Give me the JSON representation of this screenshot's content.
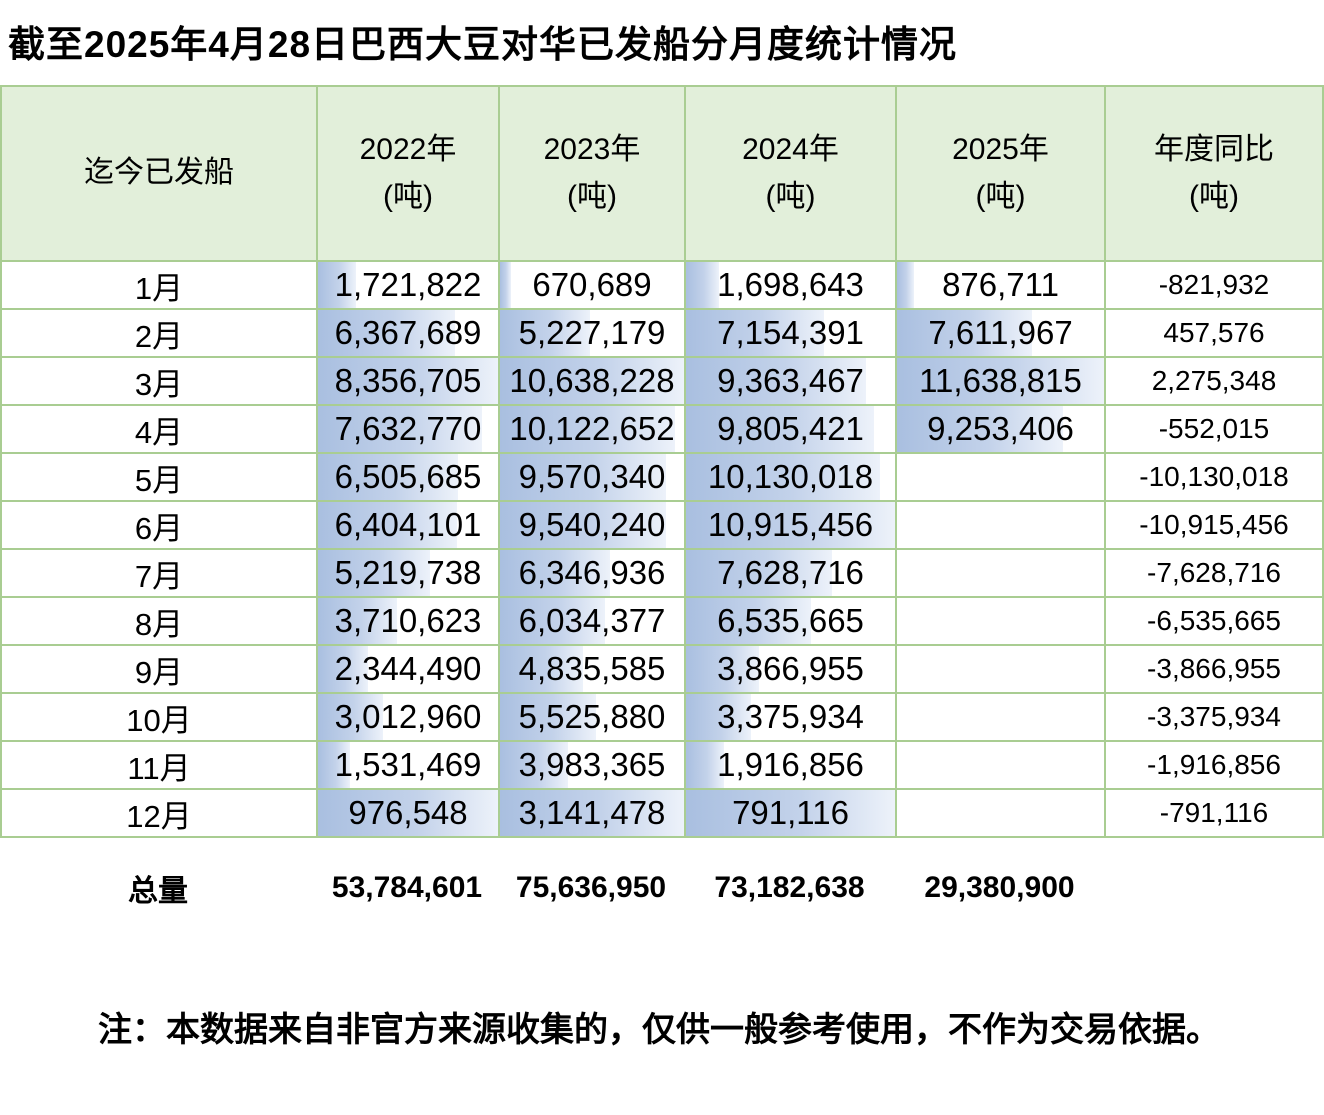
{
  "title": "截至2025年4月28日巴西大豆对华已发船分月度统计情况",
  "note": "注：本数据来自非官方来源收集的，仅供一般参考使用，不作为交易依据。",
  "colors": {
    "header_bg": "#e2efda",
    "grid_line": "#a9cd92",
    "bar_gradient_start": "#a9bfe0",
    "bar_gradient_end": "#edf2fa"
  },
  "table": {
    "header": [
      {
        "line1": "迄今已发船",
        "line2": ""
      },
      {
        "line1": "2022年",
        "line2": "(吨)"
      },
      {
        "line1": "2023年",
        "line2": "(吨)"
      },
      {
        "line1": "2024年",
        "line2": "(吨)"
      },
      {
        "line1": "2025年",
        "line2": "(吨)"
      },
      {
        "line1": "年度同比",
        "line2": "(吨)"
      }
    ],
    "rows": [
      {
        "month": "1月",
        "values": [
          "1,721,822",
          "670,689",
          "1,698,643",
          "876,711"
        ],
        "bars": [
          21,
          6,
          16,
          8
        ],
        "yoy": "-821,932"
      },
      {
        "month": "2月",
        "values": [
          "6,367,689",
          "5,227,179",
          "7,154,391",
          "7,611,967"
        ],
        "bars": [
          76,
          49,
          66,
          65
        ],
        "yoy": "457,576"
      },
      {
        "month": "3月",
        "values": [
          "8,356,705",
          "10,638,228",
          "9,363,467",
          "11,638,815"
        ],
        "bars": [
          100,
          100,
          86,
          100
        ],
        "yoy": "2,275,348"
      },
      {
        "month": "4月",
        "values": [
          "7,632,770",
          "10,122,652",
          "9,805,421",
          "9,253,406"
        ],
        "bars": [
          91,
          95,
          90,
          80
        ],
        "yoy": "-552,015"
      },
      {
        "month": "5月",
        "values": [
          "6,505,685",
          "9,570,340",
          "10,130,018",
          ""
        ],
        "bars": [
          78,
          90,
          93,
          0
        ],
        "yoy": "-10,130,018"
      },
      {
        "month": "6月",
        "values": [
          "6,404,101",
          "9,540,240",
          "10,915,456",
          ""
        ],
        "bars": [
          77,
          90,
          100,
          0
        ],
        "yoy": "-10,915,456"
      },
      {
        "month": "7月",
        "values": [
          "5,219,738",
          "6,346,936",
          "7,628,716",
          ""
        ],
        "bars": [
          62,
          60,
          70,
          0
        ],
        "yoy": "-7,628,716"
      },
      {
        "month": "8月",
        "values": [
          "3,710,623",
          "6,034,377",
          "6,535,665",
          ""
        ],
        "bars": [
          44,
          57,
          60,
          0
        ],
        "yoy": "-6,535,665"
      },
      {
        "month": "9月",
        "values": [
          "2,344,490",
          "4,835,585",
          "3,866,955",
          ""
        ],
        "bars": [
          28,
          45,
          35,
          0
        ],
        "yoy": "-3,866,955"
      },
      {
        "month": "10月",
        "values": [
          "3,012,960",
          "5,525,880",
          "3,375,934",
          ""
        ],
        "bars": [
          36,
          52,
          31,
          0
        ],
        "yoy": "-3,375,934"
      },
      {
        "month": "11月",
        "values": [
          "1,531,469",
          "3,983,365",
          "1,916,856",
          ""
        ],
        "bars": [
          18,
          37,
          18,
          0
        ],
        "yoy": "-1,916,856"
      },
      {
        "month": "12月",
        "values": [
          "976,548",
          "3,141,478",
          "791,116",
          ""
        ],
        "bars": [
          100,
          100,
          100,
          0
        ],
        "yoy": "-791,116"
      }
    ],
    "total": {
      "label": "总量",
      "values": [
        "53,784,601",
        "75,636,950",
        "73,182,638",
        "29,380,900"
      ],
      "yoy": ""
    }
  },
  "chart_data": {
    "type": "table",
    "title": "截至2025年4月28日巴西大豆对华已发船分月度统计情况",
    "row_header_label": "迄今已发船",
    "categories": [
      "1月",
      "2月",
      "3月",
      "4月",
      "5月",
      "6月",
      "7月",
      "8月",
      "9月",
      "10月",
      "11月",
      "12月"
    ],
    "series": [
      {
        "name": "2022年(吨)",
        "values": [
          1721822,
          6367689,
          8356705,
          7632770,
          6505685,
          6404101,
          5219738,
          3710623,
          2344490,
          3012960,
          1531469,
          976548
        ],
        "total": 53784601
      },
      {
        "name": "2023年(吨)",
        "values": [
          670689,
          5227179,
          10638228,
          10122652,
          9570340,
          9540240,
          6346936,
          6034377,
          4835585,
          5525880,
          3983365,
          3141478
        ],
        "total": 75636950
      },
      {
        "name": "2024年(吨)",
        "values": [
          1698643,
          7154391,
          9363467,
          9805421,
          10130018,
          10915456,
          7628716,
          6535665,
          3866955,
          3375934,
          1916856,
          791116
        ],
        "total": 73182638
      },
      {
        "name": "2025年(吨)",
        "values": [
          876711,
          7611967,
          11638815,
          9253406,
          null,
          null,
          null,
          null,
          null,
          null,
          null,
          null
        ],
        "total": 29380900
      },
      {
        "name": "年度同比(吨)",
        "values": [
          -821932,
          457576,
          2275348,
          -552015,
          -10130018,
          -10915456,
          -7628716,
          -6535665,
          -3866955,
          -3375934,
          -1916856,
          -791116
        ]
      }
    ],
    "total_row_label": "总量",
    "note": "注：本数据来自非官方来源收集的，仅供一般参考使用，不作为交易依据。",
    "layout_hints": {
      "data_bars": "per-column gradient data bars scaled to column maximum; December row cells rendered with full-width bars",
      "header_fill": "#e2efda",
      "grid": "on"
    }
  }
}
